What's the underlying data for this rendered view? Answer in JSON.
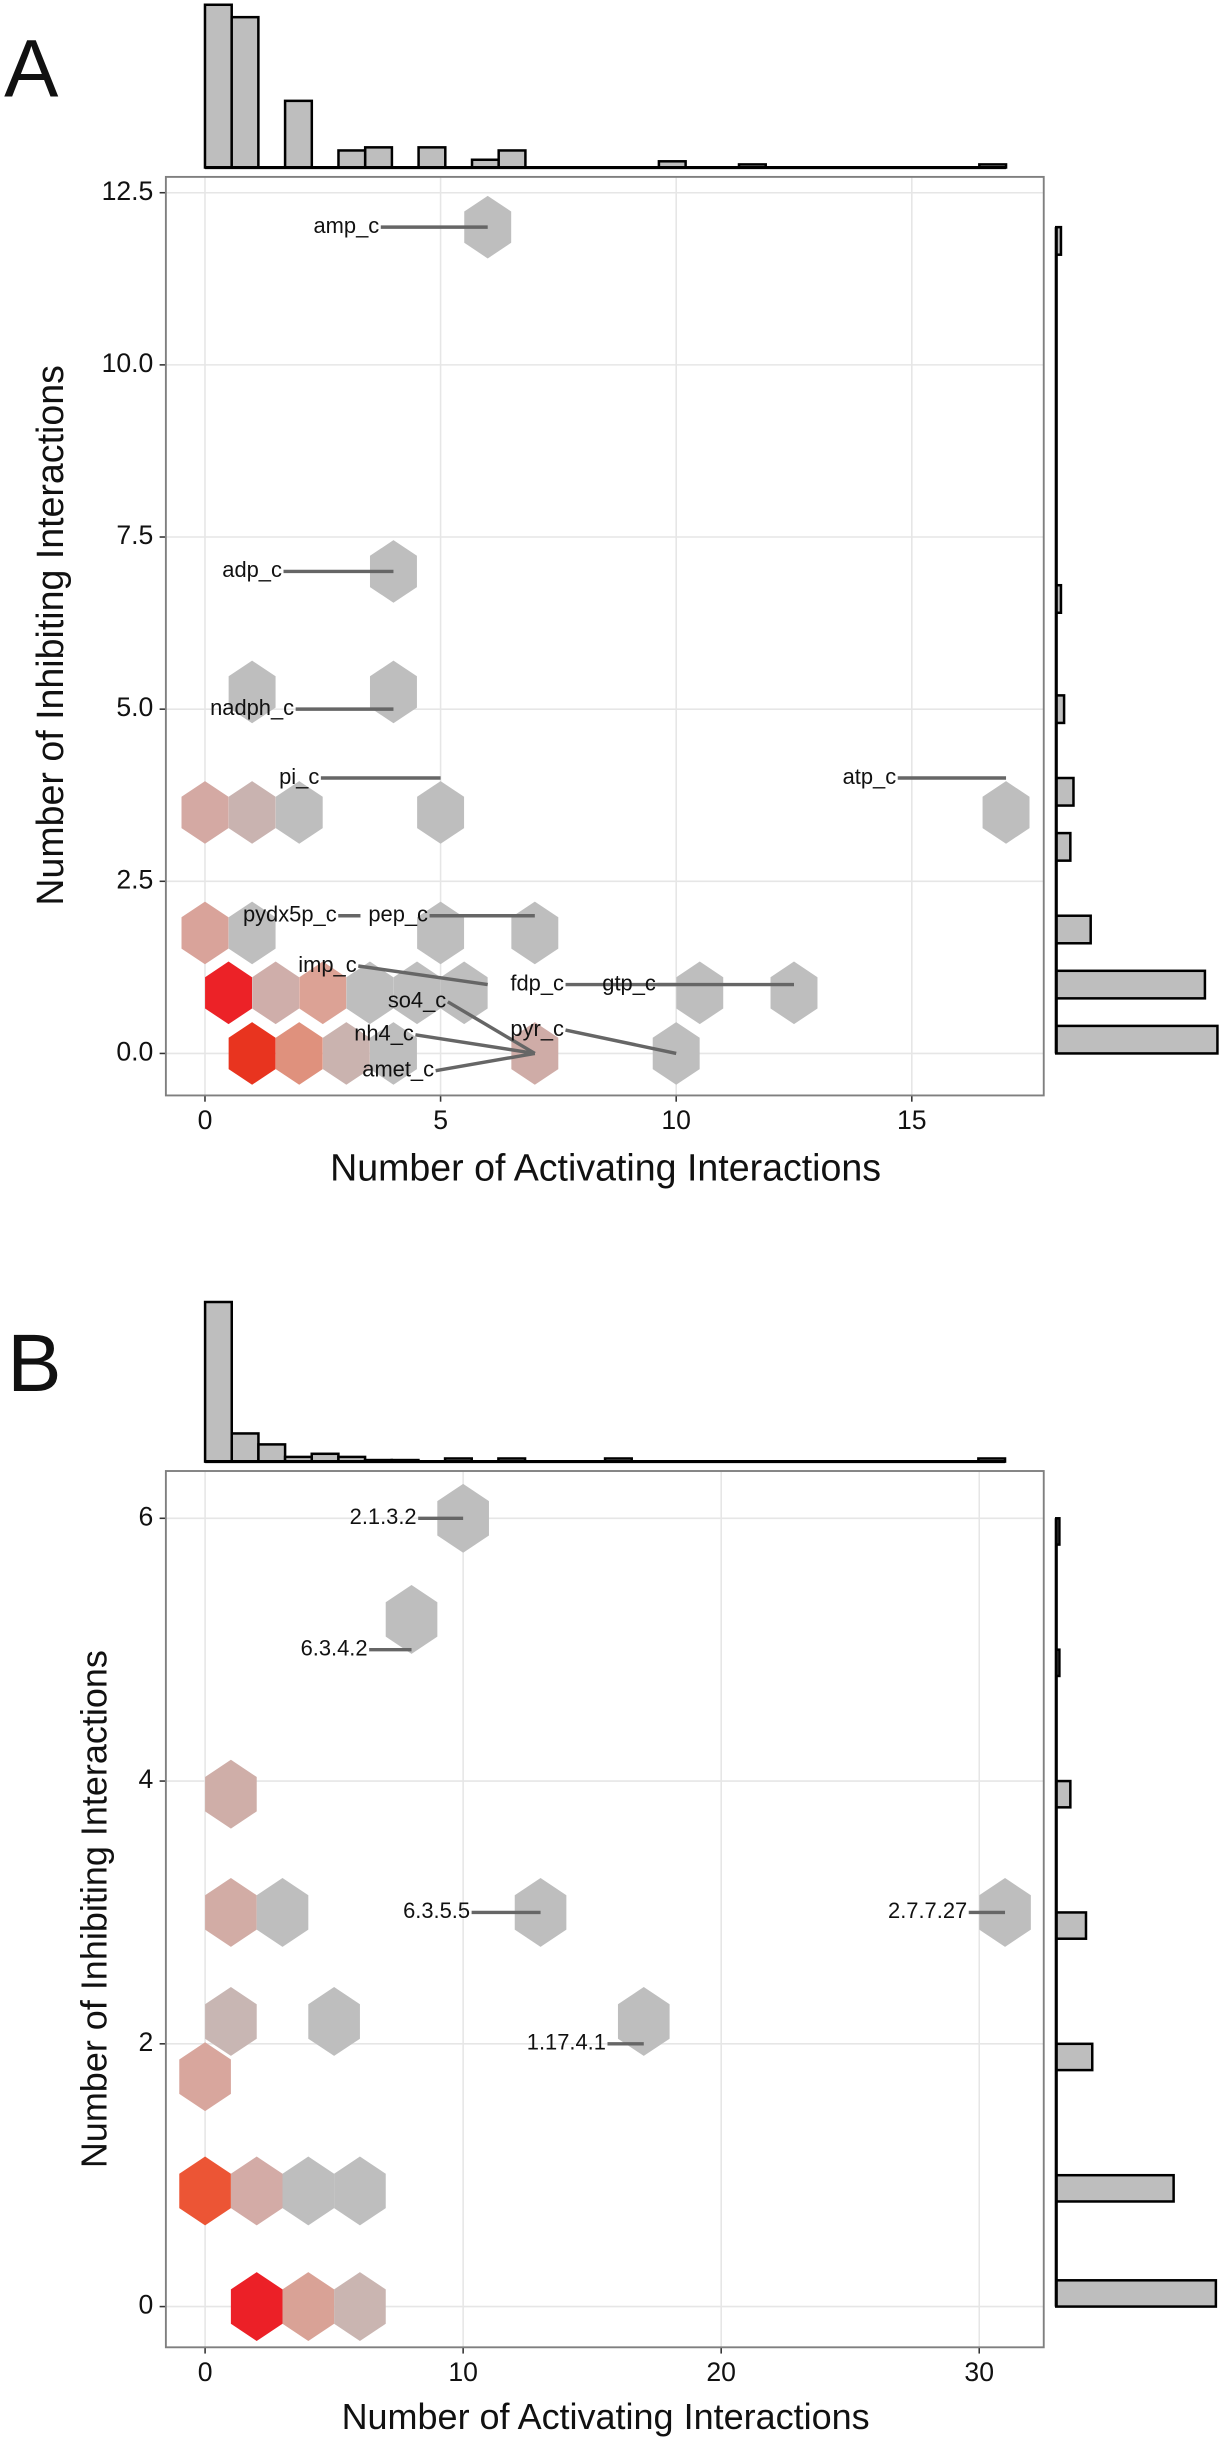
{
  "chart_data": [
    {
      "type": "hexbin",
      "panel_label": "A",
      "x_label": "Number of Activating Interactions",
      "y_label": "Number of Inhibiting Interactions",
      "xlim": [
        -0.83,
        17.8
      ],
      "ylim": [
        -0.61,
        12.73
      ],
      "xticks": [
        0,
        5,
        10,
        15
      ],
      "yticks": [
        {
          "value": 0,
          "label": "0.0"
        },
        2.5,
        {
          "value": 5,
          "label": "5.0"
        },
        7.5,
        {
          "value": 10,
          "label": "10.0"
        },
        12.5
      ],
      "grid": true,
      "x": [
        6,
        4,
        1,
        4,
        0,
        1,
        2,
        5,
        17,
        0,
        1,
        5,
        7,
        0.5,
        1.5,
        2.5,
        3.5,
        4.5,
        5.5,
        10.5,
        12.5,
        1,
        2,
        3,
        4,
        7,
        10
      ],
      "y": [
        12,
        7,
        5.25,
        5.25,
        3.5,
        3.5,
        3.5,
        3.5,
        3.5,
        1.75,
        1.75,
        1.75,
        1.75,
        0.88,
        0.88,
        0.88,
        0.88,
        0.88,
        0.88,
        0.88,
        0.88,
        0,
        0,
        0,
        0,
        0,
        0
      ],
      "colors": [
        "#bebebe",
        "#bebebe",
        "#bebebe",
        "#bebebe",
        "#d4a9a3",
        "#c9b3b0",
        "#bebebe",
        "#bebebe",
        "#bebebe",
        "#d9a39a",
        "#bebebe",
        "#bebebe",
        "#bebebe",
        "#ec2227",
        "#cfaeaa",
        "#dca295",
        "#bebebe",
        "#bebebe",
        "#bebebe",
        "#bebebe",
        "#bebebe",
        "#e8341f",
        "#df917d",
        "#cab3af",
        "#bebebe",
        "#cfaca7",
        "#bebebe"
      ],
      "annotations": [
        {
          "text": "amp_c",
          "x": 3.0,
          "y": 12.0,
          "tx": 6,
          "ty": 12
        },
        {
          "text": "adp_c",
          "x": 1.0,
          "y": 7.0,
          "tx": 4,
          "ty": 7
        },
        {
          "text": "nadph_c",
          "x": 1.0,
          "y": 5.0,
          "tx": 4,
          "ty": 5
        },
        {
          "text": "pi_c",
          "x": 2.0,
          "y": 4.0,
          "tx": 5,
          "ty": 4
        },
        {
          "text": "atp_c",
          "x": 14.1,
          "y": 4.0,
          "tx": 17,
          "ty": 4
        },
        {
          "text": "pydx5p_c",
          "x": 1.8,
          "y": 2.0,
          "tx": 3.3,
          "ty": 2
        },
        {
          "text": "pep_c",
          "x": 4.1,
          "y": 2.0,
          "tx": 7,
          "ty": 2
        },
        {
          "text": "imp_c",
          "x": 2.6,
          "y": 1.27,
          "tx": 6,
          "ty": 1
        },
        {
          "text": "fdp_c",
          "x": 7.05,
          "y": 1.0,
          "tx": 10,
          "ty": 1
        },
        {
          "text": "gtp_c",
          "x": 9.0,
          "y": 1.0,
          "tx": 12.5,
          "ty": 1
        },
        {
          "text": "so4_c",
          "x": 4.5,
          "y": 0.75,
          "tx": 7,
          "ty": 0
        },
        {
          "text": "nh4_c",
          "x": 3.8,
          "y": 0.27,
          "tx": 7,
          "ty": 0
        },
        {
          "text": "pyr_c",
          "x": 7.05,
          "y": 0.34,
          "tx": 10,
          "ty": 0
        },
        {
          "text": "amet_c",
          "x": 4.1,
          "y": -0.25,
          "tx": 7,
          "ty": 0
        }
      ],
      "top_histogram": {
        "color": "#bebebe",
        "bins": [
          0,
          0.567,
          1.133,
          1.7,
          2.267,
          2.833,
          3.4,
          3.967,
          4.533,
          5.1,
          5.667,
          6.233,
          6.8,
          7.367,
          7.933,
          8.5,
          9.067,
          9.633,
          10.2,
          10.767,
          11.333,
          11.9,
          12.467,
          13.033,
          13.6,
          14.167,
          14.733,
          15.3,
          15.867,
          16.433,
          17
        ],
        "counts": [
          105,
          97,
          0,
          43,
          0,
          11,
          13,
          0,
          13,
          0,
          5,
          11,
          0,
          0,
          0,
          0,
          0,
          4,
          0,
          0,
          2,
          0,
          0,
          0,
          0,
          0,
          0,
          0,
          0,
          2
        ]
      },
      "right_histogram": {
        "color": "#bebebe",
        "bins": [
          0,
          0.4,
          0.8,
          1.2,
          1.6,
          2,
          2.4,
          2.8,
          3.2,
          3.6,
          4,
          4.4,
          4.8,
          5.2,
          5.6,
          6,
          6.4,
          6.8,
          7.2,
          7.6,
          8,
          8.4,
          8.8,
          9.2,
          9.6,
          10,
          10.4,
          10.8,
          11.2,
          11.6,
          12
        ],
        "counts": [
          103,
          0,
          95,
          0,
          22,
          0,
          0,
          9,
          0,
          11,
          0,
          0,
          5,
          0,
          0,
          0,
          3,
          0,
          0,
          0,
          0,
          0,
          0,
          0,
          0,
          0,
          0,
          0,
          0,
          3
        ]
      }
    },
    {
      "type": "hexbin",
      "panel_label": "B",
      "x_label": "Number of Activating Interactions",
      "y_label": "Number of Inhibiting Interactions",
      "xlim": [
        -1.52,
        32.5
      ],
      "ylim": [
        -0.31,
        6.36
      ],
      "xticks": [
        0,
        10,
        20,
        30
      ],
      "yticks": [
        0,
        2,
        4,
        6
      ],
      "grid": true,
      "x": [
        10,
        8,
        1,
        1,
        3,
        13,
        31,
        1,
        5,
        17,
        0,
        0,
        2,
        4,
        6,
        2,
        4,
        6
      ],
      "y": [
        6,
        5.23,
        3.9,
        3,
        3,
        3,
        3,
        2.17,
        2.17,
        2.17,
        1.75,
        0.88,
        0.88,
        0.88,
        0.88,
        0,
        0,
        0
      ],
      "colors": [
        "#bebebe",
        "#bebebe",
        "#cfaea8",
        "#d2aca5",
        "#bebebe",
        "#bebebe",
        "#bebebe",
        "#c8b6b3",
        "#bebebe",
        "#bebebe",
        "#d8a69d",
        "#ec5535",
        "#d3aba6",
        "#bebebe",
        "#bebebe",
        "#ec2027",
        "#d9a296",
        "#cab5b1"
      ],
      "annotations": [
        {
          "text": "2.1.3.2",
          "x": 6.9,
          "y": 6.0,
          "tx": 10,
          "ty": 6
        },
        {
          "text": "6.3.4.2",
          "x": 5.0,
          "y": 5.0,
          "tx": 8,
          "ty": 5
        },
        {
          "text": "6.3.5.5",
          "x": 8.97,
          "y": 3.0,
          "tx": 13,
          "ty": 3
        },
        {
          "text": "2.7.7.27",
          "x": 28,
          "y": 3.0,
          "tx": 31,
          "ty": 3
        },
        {
          "text": "1.17.4.1",
          "x": 14,
          "y": 2.0,
          "tx": 17,
          "ty": 2
        }
      ],
      "top_histogram": {
        "color": "#bebebe",
        "bins": [
          0,
          1.033,
          2.067,
          3.1,
          4.133,
          5.167,
          6.2,
          7.233,
          8.267,
          9.3,
          10.333,
          11.367,
          12.4,
          13.433,
          14.467,
          15.5,
          16.533,
          17.567,
          18.6,
          19.633,
          20.667,
          21.7,
          22.733,
          23.767,
          24.8,
          25.833,
          26.867,
          27.9,
          28.933,
          29.967,
          31
        ],
        "counts": [
          102,
          18,
          11,
          3,
          5,
          3,
          1,
          1,
          0,
          2,
          0,
          2,
          0,
          0,
          0,
          2,
          0,
          0,
          0,
          0,
          0,
          0,
          0,
          0,
          0,
          0,
          0,
          0,
          0,
          2
        ]
      },
      "right_histogram": {
        "color": "#bebebe",
        "bins": [
          0,
          0.2,
          0.4,
          0.6,
          0.8,
          1,
          1.2,
          1.4,
          1.6,
          1.8,
          2,
          2.2,
          2.4,
          2.6,
          2.8,
          3,
          3.2,
          3.4,
          3.6,
          3.8,
          4,
          4.2,
          4.4,
          4.6,
          4.8,
          5,
          5.2,
          5.4,
          5.6,
          5.8,
          6
        ],
        "counts": [
          102,
          0,
          0,
          0,
          75,
          0,
          0,
          0,
          0,
          23,
          0,
          0,
          0,
          0,
          19,
          0,
          0,
          0,
          0,
          9,
          0,
          0,
          0,
          0,
          2,
          0,
          0,
          0,
          0,
          2
        ]
      }
    }
  ]
}
